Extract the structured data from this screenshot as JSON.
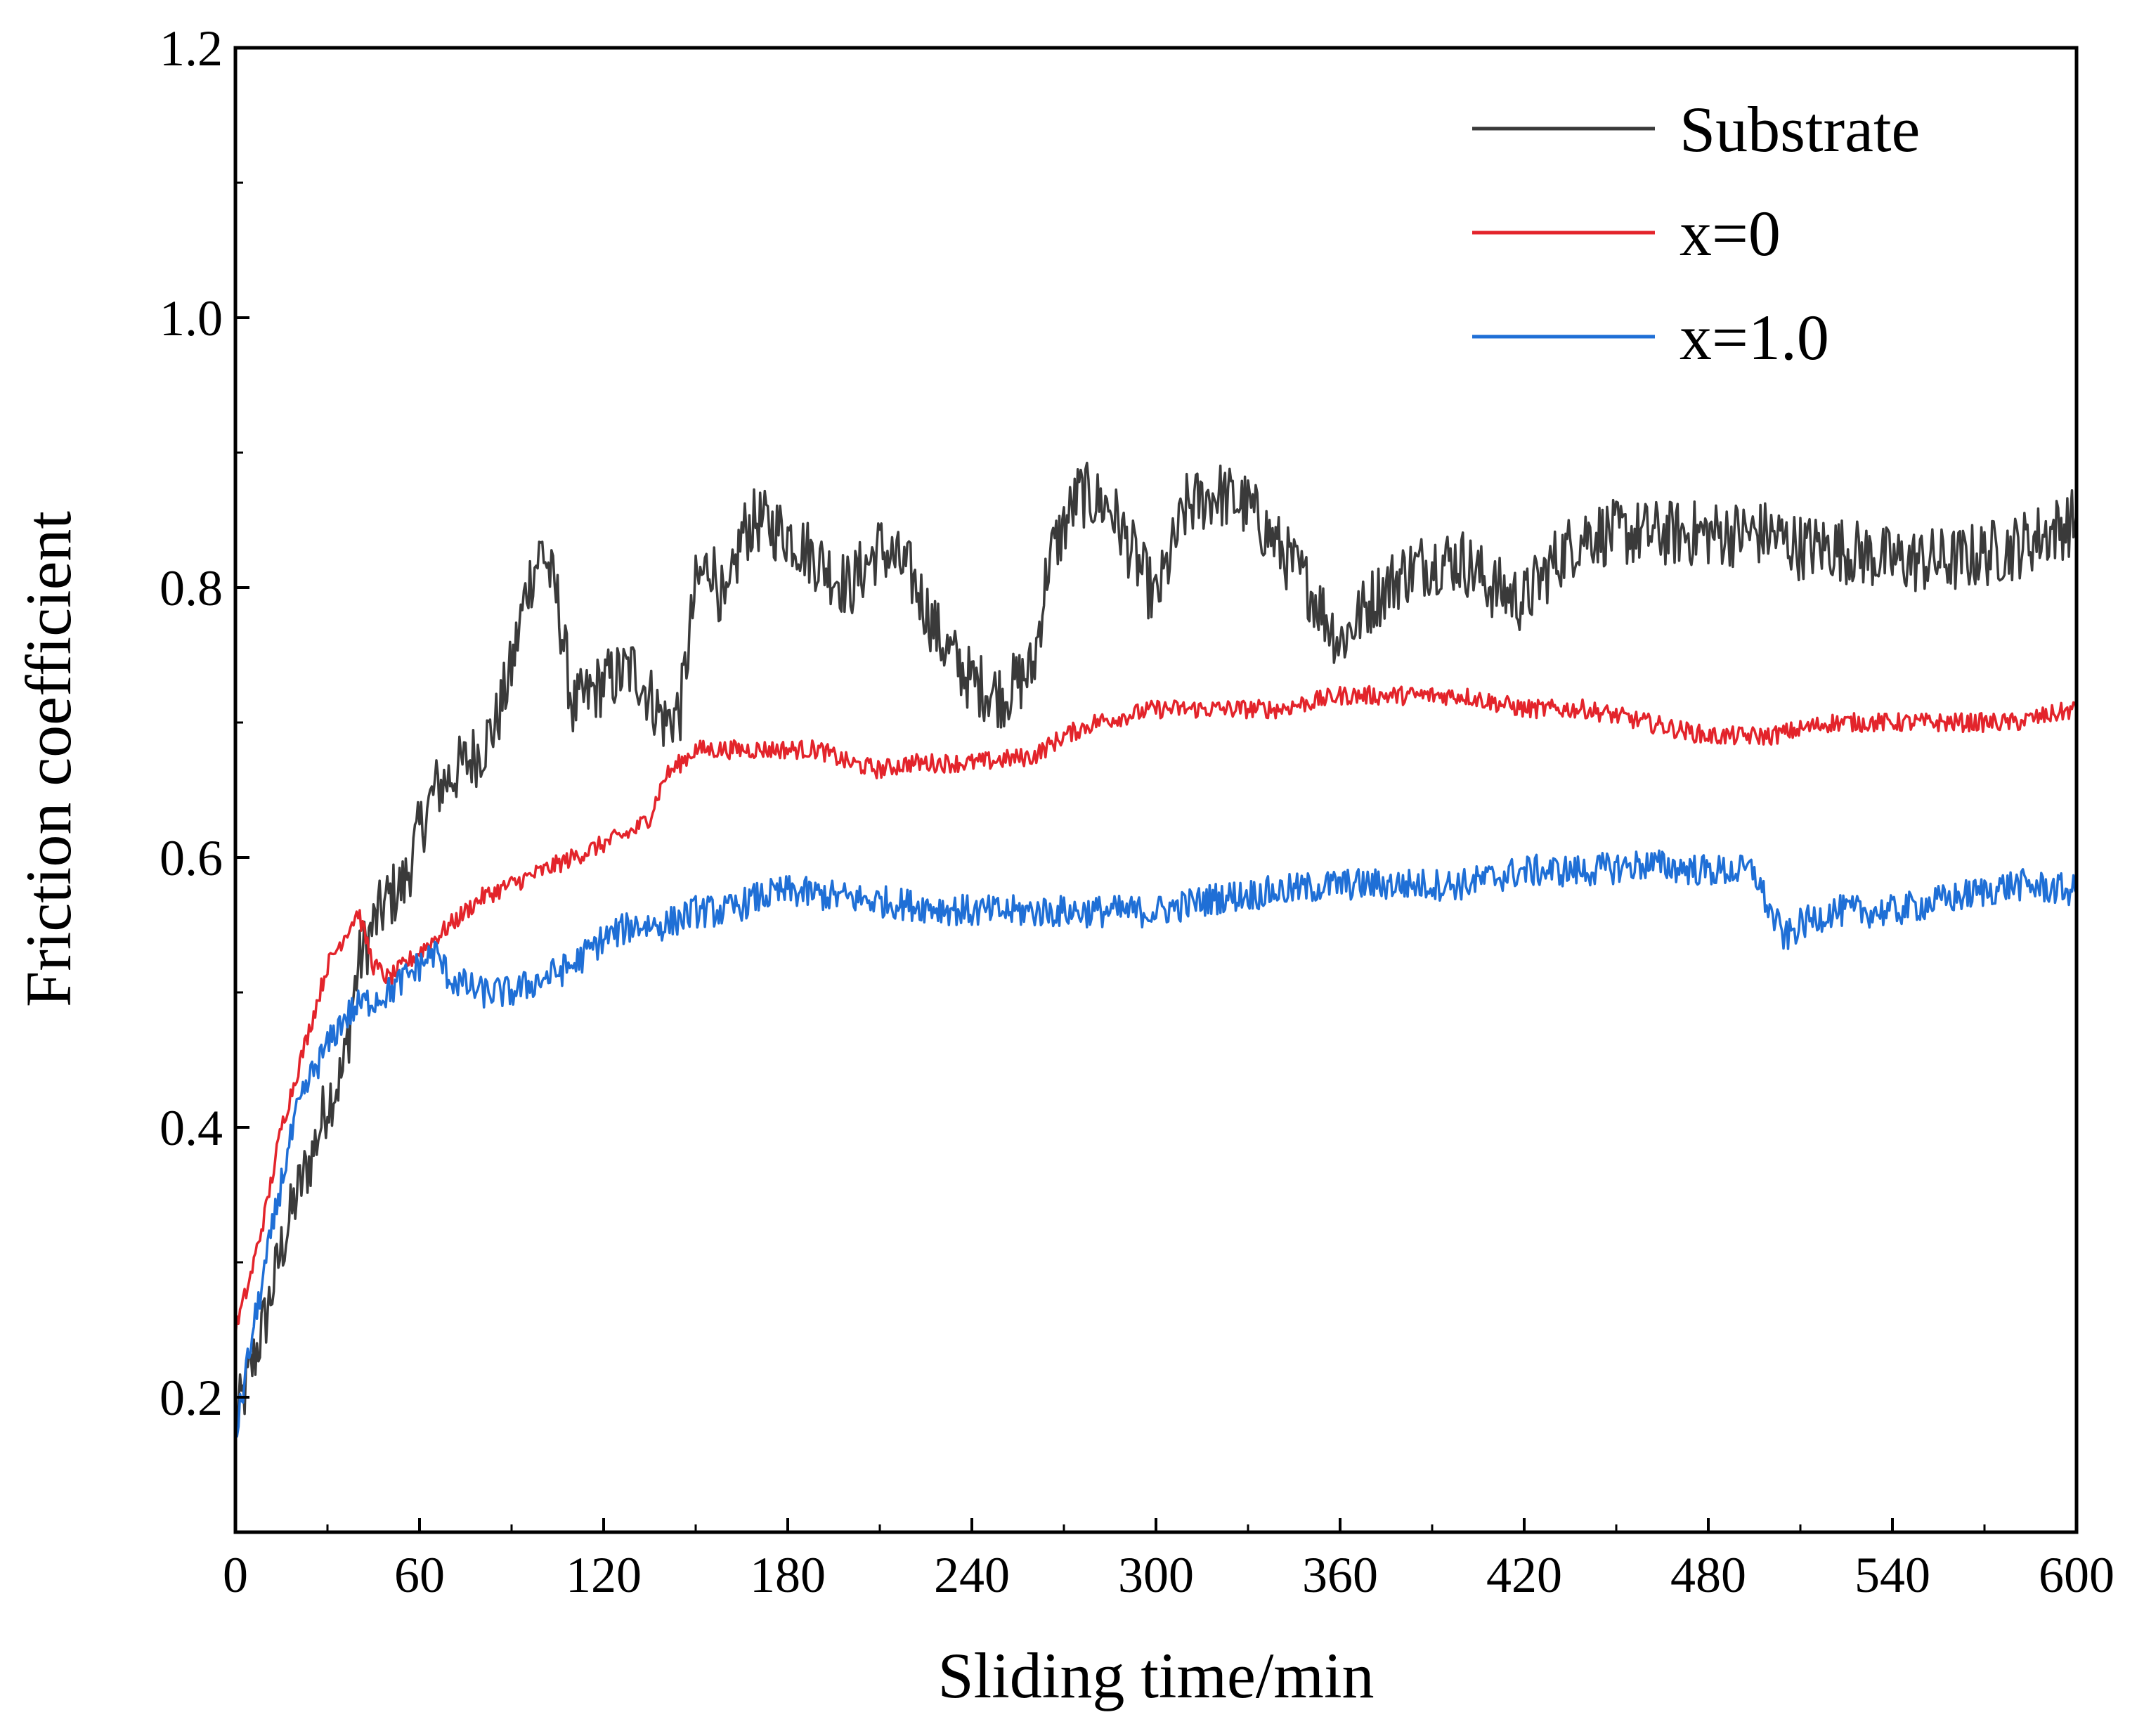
{
  "chart_data": {
    "type": "line",
    "title": "",
    "xlabel": "Sliding time/min",
    "ylabel": "Friction coefficient",
    "xlim": [
      0,
      600
    ],
    "ylim": [
      0.1,
      1.2
    ],
    "xticks": [
      0,
      60,
      120,
      180,
      240,
      300,
      360,
      420,
      480,
      540,
      600
    ],
    "xtick_labels": [
      "0",
      "60",
      "120",
      "180",
      "240",
      "300",
      "360",
      "420",
      "480",
      "540",
      "600"
    ],
    "yticks": [
      0.2,
      0.4,
      0.6,
      0.8,
      1.0,
      1.2
    ],
    "ytick_labels": [
      "0.2",
      "0.4",
      "0.6",
      "0.8",
      "1.0",
      "1.2"
    ],
    "grid": false,
    "legend_position": "top-right",
    "series": [
      {
        "name": "Substrate",
        "color": "#3a3a3a",
        "noise": 0.025,
        "points": [
          [
            0,
            0.18
          ],
          [
            5,
            0.22
          ],
          [
            10,
            0.26
          ],
          [
            15,
            0.31
          ],
          [
            20,
            0.35
          ],
          [
            25,
            0.38
          ],
          [
            30,
            0.42
          ],
          [
            35,
            0.44
          ],
          [
            40,
            0.52
          ],
          [
            45,
            0.55
          ],
          [
            50,
            0.57
          ],
          [
            55,
            0.58
          ],
          [
            60,
            0.62
          ],
          [
            65,
            0.65
          ],
          [
            70,
            0.66
          ],
          [
            75,
            0.67
          ],
          [
            80,
            0.68
          ],
          [
            85,
            0.7
          ],
          [
            90,
            0.74
          ],
          [
            95,
            0.8
          ],
          [
            100,
            0.83
          ],
          [
            105,
            0.79
          ],
          [
            110,
            0.71
          ],
          [
            115,
            0.72
          ],
          [
            120,
            0.73
          ],
          [
            130,
            0.74
          ],
          [
            140,
            0.7
          ],
          [
            145,
            0.71
          ],
          [
            150,
            0.8
          ],
          [
            155,
            0.82
          ],
          [
            160,
            0.78
          ],
          [
            165,
            0.84
          ],
          [
            170,
            0.85
          ],
          [
            180,
            0.84
          ],
          [
            190,
            0.82
          ],
          [
            200,
            0.8
          ],
          [
            210,
            0.83
          ],
          [
            220,
            0.81
          ],
          [
            230,
            0.76
          ],
          [
            240,
            0.73
          ],
          [
            250,
            0.72
          ],
          [
            260,
            0.74
          ],
          [
            265,
            0.82
          ],
          [
            275,
            0.87
          ],
          [
            285,
            0.86
          ],
          [
            300,
            0.79
          ],
          [
            310,
            0.86
          ],
          [
            320,
            0.87
          ],
          [
            330,
            0.86
          ],
          [
            340,
            0.83
          ],
          [
            350,
            0.8
          ],
          [
            360,
            0.76
          ],
          [
            370,
            0.79
          ],
          [
            380,
            0.81
          ],
          [
            390,
            0.82
          ],
          [
            400,
            0.82
          ],
          [
            410,
            0.8
          ],
          [
            420,
            0.79
          ],
          [
            430,
            0.82
          ],
          [
            440,
            0.84
          ],
          [
            450,
            0.84
          ],
          [
            460,
            0.84
          ],
          [
            470,
            0.84
          ],
          [
            480,
            0.84
          ],
          [
            490,
            0.84
          ],
          [
            500,
            0.84
          ],
          [
            510,
            0.83
          ],
          [
            520,
            0.83
          ],
          [
            540,
            0.82
          ],
          [
            560,
            0.82
          ],
          [
            580,
            0.83
          ],
          [
            590,
            0.84
          ],
          [
            600,
            0.85
          ]
        ]
      },
      {
        "name": "x=0",
        "color": "#e3242b",
        "noise": 0.007,
        "points": [
          [
            0,
            0.25
          ],
          [
            5,
            0.29
          ],
          [
            10,
            0.34
          ],
          [
            15,
            0.4
          ],
          [
            20,
            0.44
          ],
          [
            25,
            0.48
          ],
          [
            30,
            0.52
          ],
          [
            35,
            0.54
          ],
          [
            40,
            0.56
          ],
          [
            45,
            0.52
          ],
          [
            50,
            0.51
          ],
          [
            60,
            0.53
          ],
          [
            70,
            0.55
          ],
          [
            80,
            0.57
          ],
          [
            90,
            0.58
          ],
          [
            100,
            0.59
          ],
          [
            110,
            0.6
          ],
          [
            120,
            0.61
          ],
          [
            130,
            0.62
          ],
          [
            135,
            0.63
          ],
          [
            140,
            0.66
          ],
          [
            145,
            0.67
          ],
          [
            150,
            0.68
          ],
          [
            160,
            0.68
          ],
          [
            170,
            0.68
          ],
          [
            180,
            0.68
          ],
          [
            190,
            0.68
          ],
          [
            200,
            0.67
          ],
          [
            210,
            0.665
          ],
          [
            220,
            0.67
          ],
          [
            240,
            0.67
          ],
          [
            260,
            0.675
          ],
          [
            270,
            0.69
          ],
          [
            280,
            0.7
          ],
          [
            300,
            0.71
          ],
          [
            320,
            0.71
          ],
          [
            340,
            0.71
          ],
          [
            360,
            0.72
          ],
          [
            380,
            0.72
          ],
          [
            400,
            0.72
          ],
          [
            420,
            0.71
          ],
          [
            440,
            0.71
          ],
          [
            460,
            0.7
          ],
          [
            480,
            0.69
          ],
          [
            500,
            0.69
          ],
          [
            520,
            0.7
          ],
          [
            540,
            0.7
          ],
          [
            560,
            0.7
          ],
          [
            580,
            0.7
          ],
          [
            600,
            0.71
          ]
        ]
      },
      {
        "name": "x=1.0",
        "color": "#1f6fd6",
        "noise": 0.012,
        "points": [
          [
            0,
            0.17
          ],
          [
            5,
            0.24
          ],
          [
            10,
            0.3
          ],
          [
            15,
            0.36
          ],
          [
            20,
            0.41
          ],
          [
            25,
            0.44
          ],
          [
            30,
            0.46
          ],
          [
            35,
            0.48
          ],
          [
            40,
            0.49
          ],
          [
            50,
            0.5
          ],
          [
            60,
            0.52
          ],
          [
            65,
            0.53
          ],
          [
            70,
            0.51
          ],
          [
            80,
            0.5
          ],
          [
            90,
            0.5
          ],
          [
            100,
            0.51
          ],
          [
            110,
            0.52
          ],
          [
            120,
            0.54
          ],
          [
            130,
            0.55
          ],
          [
            140,
            0.55
          ],
          [
            150,
            0.56
          ],
          [
            160,
            0.56
          ],
          [
            170,
            0.57
          ],
          [
            180,
            0.575
          ],
          [
            200,
            0.57
          ],
          [
            220,
            0.565
          ],
          [
            240,
            0.56
          ],
          [
            260,
            0.56
          ],
          [
            280,
            0.56
          ],
          [
            300,
            0.56
          ],
          [
            320,
            0.57
          ],
          [
            340,
            0.575
          ],
          [
            360,
            0.58
          ],
          [
            380,
            0.58
          ],
          [
            400,
            0.58
          ],
          [
            420,
            0.59
          ],
          [
            440,
            0.59
          ],
          [
            460,
            0.595
          ],
          [
            480,
            0.59
          ],
          [
            495,
            0.59
          ],
          [
            500,
            0.56
          ],
          [
            505,
            0.54
          ],
          [
            510,
            0.55
          ],
          [
            520,
            0.56
          ],
          [
            540,
            0.56
          ],
          [
            560,
            0.57
          ],
          [
            580,
            0.58
          ],
          [
            600,
            0.575
          ]
        ]
      }
    ]
  }
}
